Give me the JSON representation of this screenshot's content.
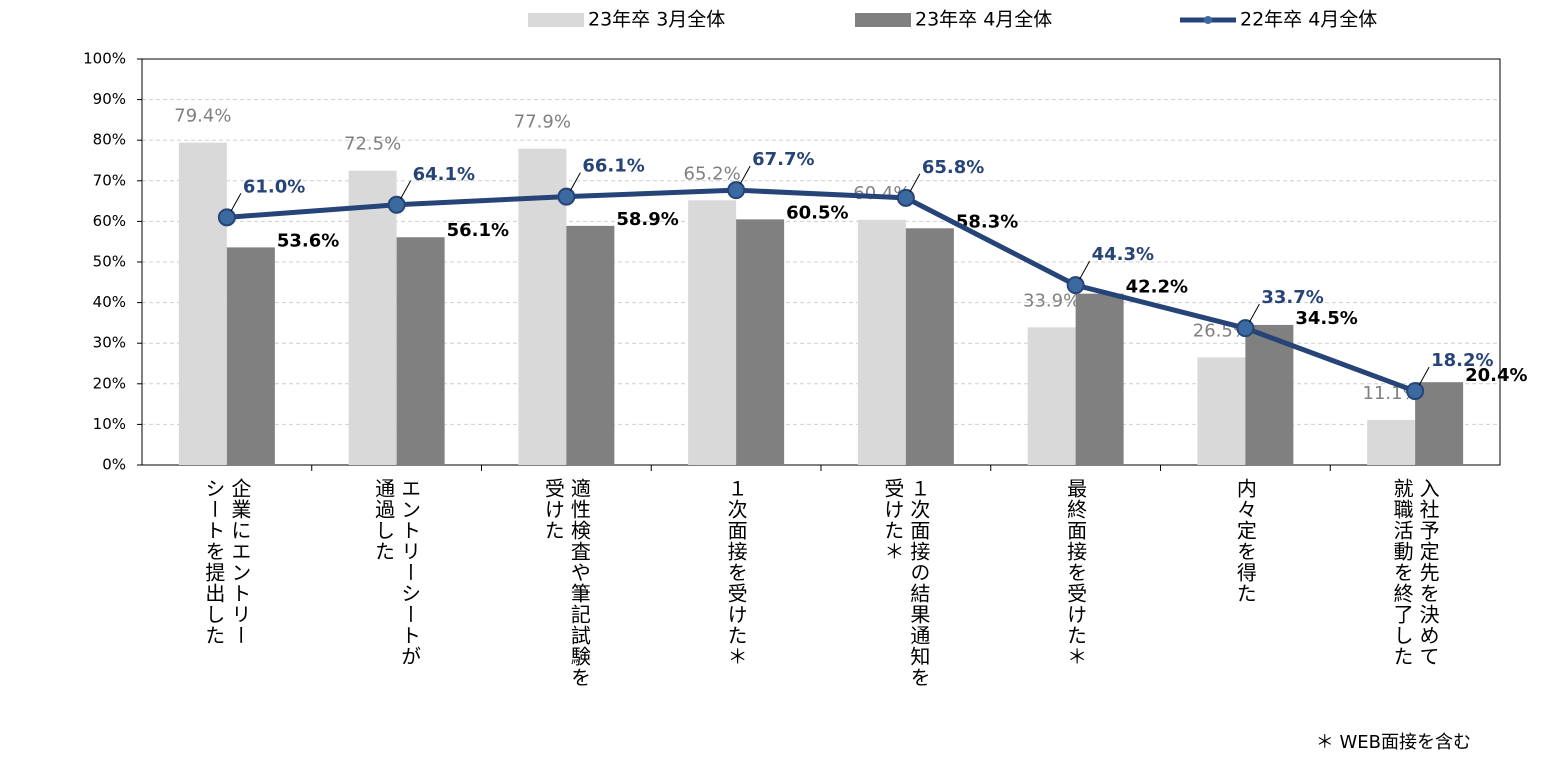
{
  "chart_data": {
    "type": "bar",
    "categories": [
      "企業にエントリー\nシートを提出した",
      "エントリーシートが\n通過した",
      "適性検査や筆記試験を\n受けた",
      "１次面接を受けた＊",
      "１次面接の結果通知を\n受けた＊",
      "最終面接を受けた＊",
      "内々定を得た",
      "入社予定先を決めて\n就職活動を終了した"
    ],
    "series": [
      {
        "name": "23年卒 3月全体",
        "type": "bar",
        "color": "#d9d9d9",
        "label_color": "#808080",
        "values": [
          79.4,
          72.5,
          77.9,
          65.2,
          60.4,
          33.9,
          26.5,
          11.1
        ],
        "value_labels": [
          "79.4%",
          "72.5%",
          "77.9%",
          "65.2%",
          "60.4%",
          "33.9%",
          "26.5%",
          "11.1%"
        ]
      },
      {
        "name": "23年卒 4月全体",
        "type": "bar",
        "color": "#808080",
        "label_color": "#000000",
        "values": [
          53.6,
          56.1,
          58.9,
          60.5,
          58.3,
          42.2,
          34.5,
          20.4
        ],
        "value_labels": [
          "53.6%",
          "56.1%",
          "58.9%",
          "60.5%",
          "58.3%",
          "42.2%",
          "34.5%",
          "20.4%"
        ]
      },
      {
        "name": "22年卒 4月全体",
        "type": "line",
        "color": "#264478",
        "label_color": "#264478",
        "values": [
          61.0,
          64.1,
          66.1,
          67.7,
          65.8,
          44.3,
          33.7,
          18.2
        ],
        "value_labels": [
          "61.0%",
          "64.1%",
          "66.1%",
          "67.7%",
          "65.8%",
          "44.3%",
          "33.7%",
          "18.2%"
        ]
      }
    ],
    "ylim": [
      0,
      100
    ],
    "yticks": [
      {
        "value": 0,
        "label": "0%"
      },
      {
        "value": 10,
        "label": "10%"
      },
      {
        "value": 20,
        "label": "20%"
      },
      {
        "value": 30,
        "label": "30%"
      },
      {
        "value": 40,
        "label": "40%"
      },
      {
        "value": 50,
        "label": "50%"
      },
      {
        "value": 60,
        "label": "60%"
      },
      {
        "value": 70,
        "label": "70%"
      },
      {
        "value": 80,
        "label": "80%"
      },
      {
        "value": 90,
        "label": "90%"
      },
      {
        "value": 100,
        "label": "100%"
      }
    ],
    "grid": true,
    "legend": "top",
    "note": "＊  WEB面接を含む"
  }
}
